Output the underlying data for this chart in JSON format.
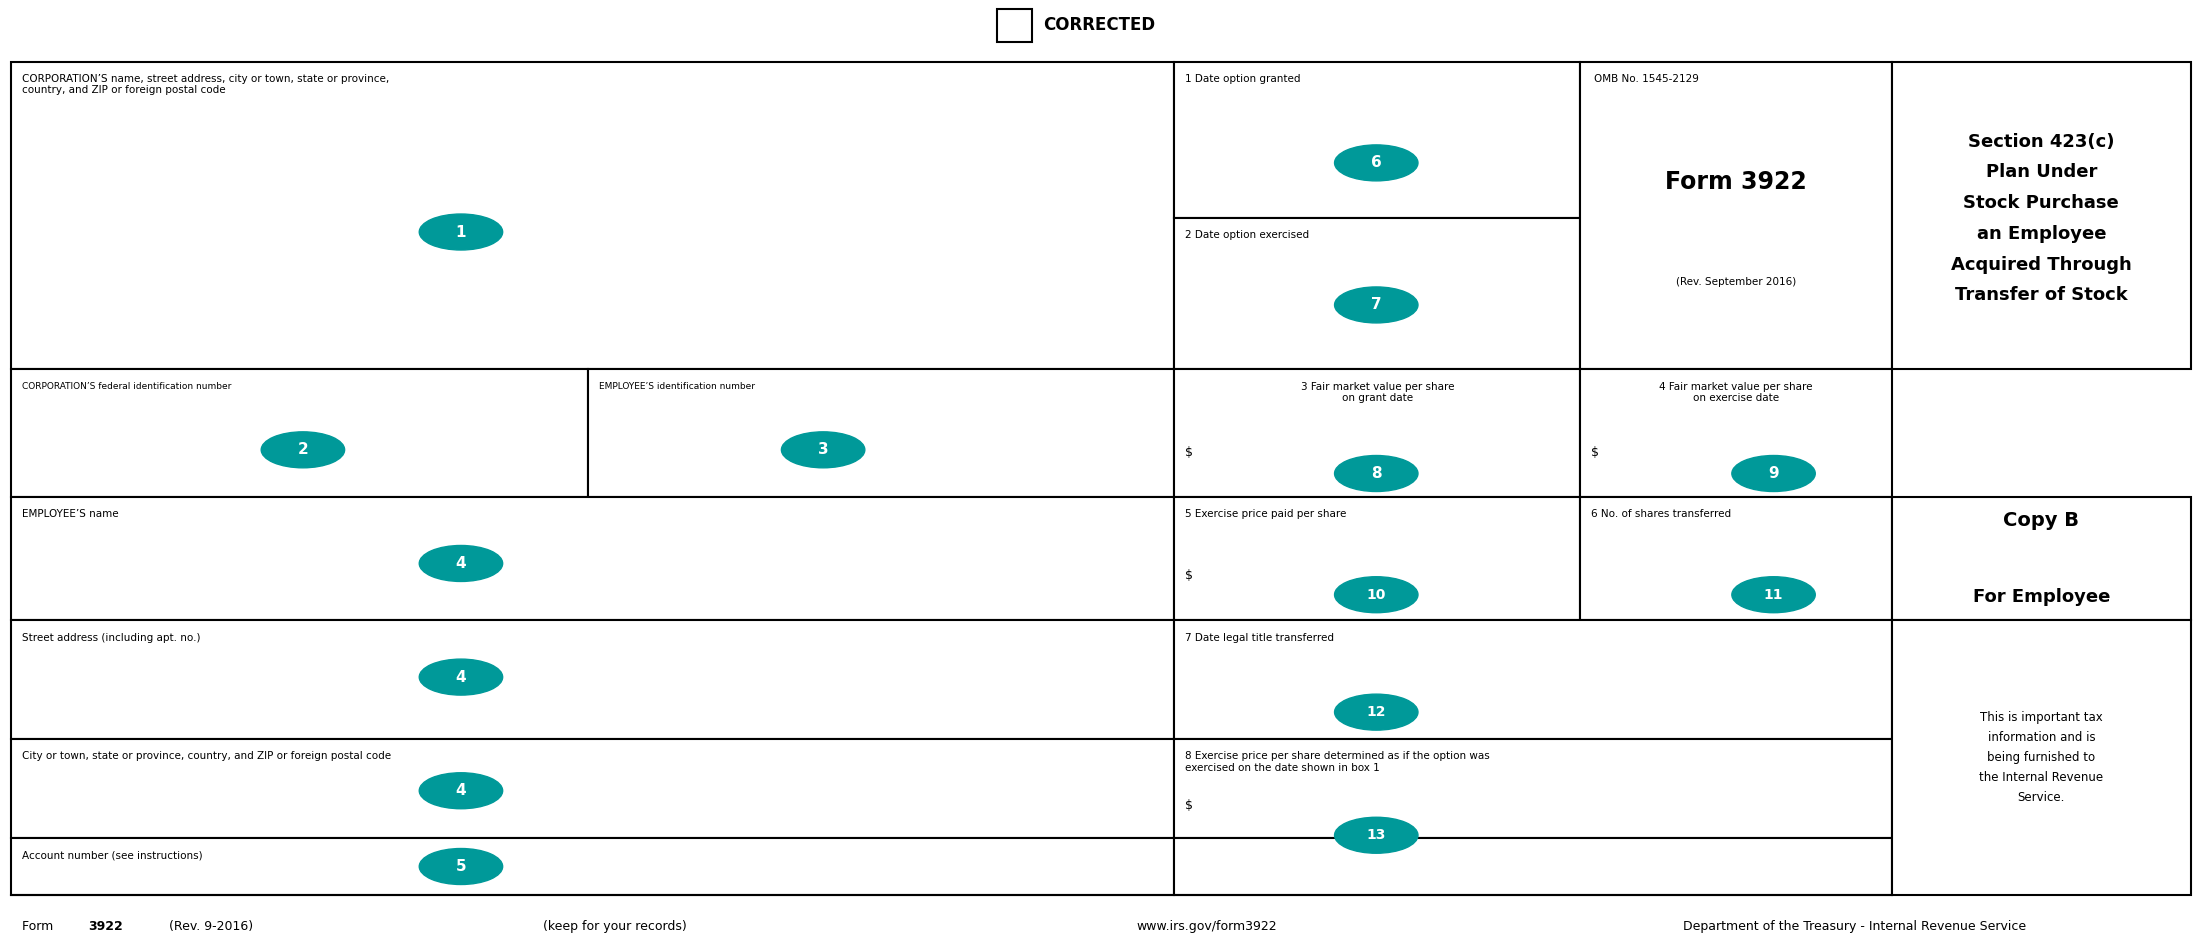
{
  "figsize": [
    21.95,
    9.47
  ],
  "dpi": 100,
  "bg_color": "#ffffff",
  "border_color": "#000000",
  "teal_color": "#009999",
  "corrected_label": "CORRECTED",
  "form_title_lines": [
    "Transfer of Stock",
    "Acquired Through",
    "an Employee",
    "Stock Purchase",
    "Plan Under",
    "Section 423(c)"
  ],
  "copy_b": "Copy B",
  "for_employee": "For Employee",
  "important_text": "This is important tax\ninformation and is\nbeing furnished to\nthe Internal Revenue\nService.",
  "omb_text": "OMB No. 1545-2129",
  "form_number": "Form 3922",
  "rev_text": "(Rev. September 2016)",
  "footer_left_plain": "Form ",
  "footer_left_bold": "3922",
  "footer_left_rest": " (Rev. 9-2016)",
  "footer_center": "(keep for your records)",
  "footer_url": "www.irs.gov/form3922",
  "footer_right": "Department of the Treasury - Internal Revenue Service"
}
